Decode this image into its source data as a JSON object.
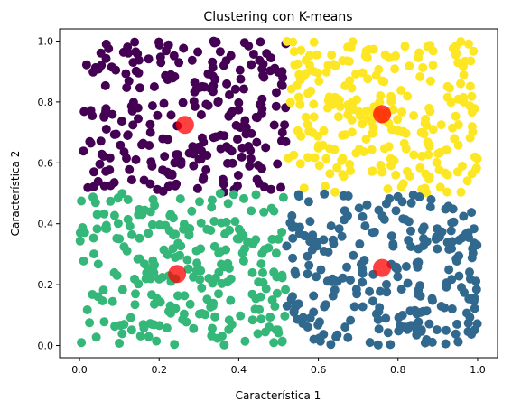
{
  "chart_data": {
    "type": "scatter",
    "title": "Clustering con K-means",
    "xlabel": "Característica 1",
    "ylabel": "Característica 2",
    "xlim": [
      -0.05,
      1.05
    ],
    "ylim": [
      -0.04,
      1.04
    ],
    "xticks": [
      0.0,
      0.2,
      0.4,
      0.6,
      0.8,
      1.0
    ],
    "yticks": [
      0.0,
      0.2,
      0.4,
      0.6,
      0.8,
      1.0
    ],
    "xtick_labels": [
      "0.0",
      "0.2",
      "0.4",
      "0.6",
      "0.8",
      "1.0"
    ],
    "ytick_labels": [
      "0.0",
      "0.2",
      "0.4",
      "0.6",
      "0.8",
      "1.0"
    ],
    "grid": false,
    "n_points": 1000,
    "clusters": [
      {
        "color": "#440154",
        "x_range": [
          0.0,
          0.52
        ],
        "y_range": [
          0.5,
          1.0
        ],
        "count": 250
      },
      {
        "color": "#fde725",
        "x_range": [
          0.52,
          1.0
        ],
        "y_range": [
          0.5,
          1.0
        ],
        "count": 250
      },
      {
        "color": "#35b779",
        "x_range": [
          0.0,
          0.52
        ],
        "y_range": [
          0.0,
          0.5
        ],
        "count": 250
      },
      {
        "color": "#31688e",
        "x_range": [
          0.52,
          1.0
        ],
        "y_range": [
          0.0,
          0.5
        ],
        "count": 250
      }
    ],
    "centroids": {
      "color": "#ff0000",
      "points": [
        {
          "x": 0.265,
          "y": 0.725
        },
        {
          "x": 0.76,
          "y": 0.76
        },
        {
          "x": 0.245,
          "y": 0.235
        },
        {
          "x": 0.76,
          "y": 0.255
        }
      ]
    }
  }
}
